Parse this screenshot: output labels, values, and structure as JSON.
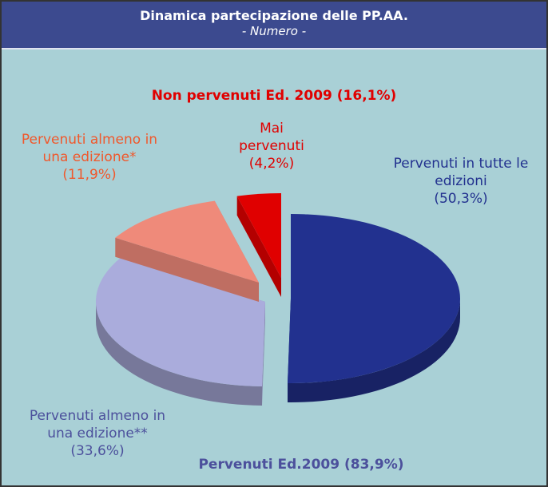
{
  "chart_data": {
    "type": "pie",
    "title": "Dinamica partecipazione delle PP.AA.",
    "subtitle": "- Numero -",
    "categories": [
      "Pervenuti in tutte le edizioni",
      "Pervenuti almeno in una edizione**",
      "Pervenuti almeno in una edizione*",
      "Mai pervenuti"
    ],
    "values": [
      50.3,
      33.6,
      11.9,
      4.2
    ],
    "value_labels": [
      "(50,3%)",
      "(33,6%)",
      "(11,9%)",
      "(4,2%)"
    ],
    "colors": [
      "#22318f",
      "#aaacdc",
      "#ef8a7a",
      "#e00000"
    ],
    "label_colors": [
      "#22318f",
      "#4c509c",
      "#f0582c",
      "#e00000"
    ],
    "annotations": [
      "Non pervenuti Ed. 2009 (16,1%)",
      "Pervenuti Ed.2009 (83,9%)"
    ]
  }
}
